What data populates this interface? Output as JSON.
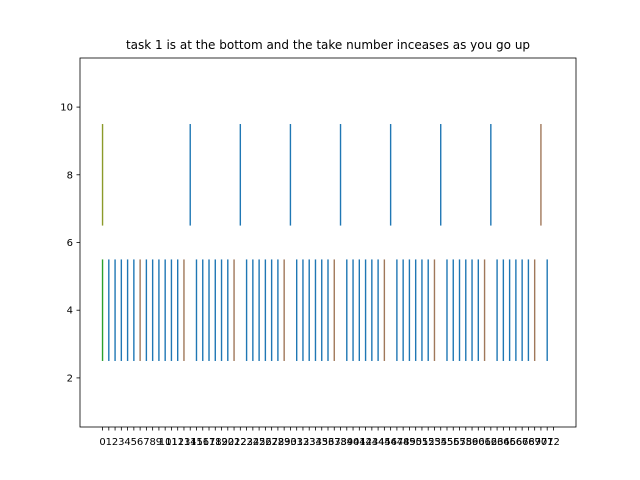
{
  "chart_data": {
    "type": "eventplot",
    "title": "task 1 is at the bottom and the take number inceases as you go up",
    "xlabel": "",
    "ylabel": "",
    "xlim": [
      -3.6,
      75.6
    ],
    "ylim": [
      0.55,
      11.45
    ],
    "yticks": [
      2,
      4,
      6,
      8,
      10
    ],
    "xticks": [
      0,
      1,
      2,
      3,
      4,
      5,
      6,
      7,
      8,
      9,
      10,
      11,
      12,
      13,
      14,
      15,
      16,
      17,
      18,
      19,
      20,
      21,
      22,
      23,
      24,
      25,
      26,
      27,
      28,
      29,
      30,
      31,
      32,
      33,
      34,
      35,
      36,
      37,
      38,
      39,
      40,
      41,
      42,
      43,
      44,
      45,
      46,
      47,
      48,
      49,
      50,
      51,
      52,
      53,
      54,
      55,
      56,
      57,
      58,
      59,
      60,
      61,
      62,
      63,
      64,
      65,
      66,
      67,
      68,
      69,
      70,
      71,
      72
    ],
    "colors": {
      "blue": "#1f77b4",
      "brown": "#a0785a",
      "green": "#2ca02c",
      "olive": "#8c9a2a"
    },
    "series": [
      {
        "row": "bottom",
        "y_range": [
          2.5,
          5.5
        ],
        "events": [
          {
            "x": 0,
            "color": "green"
          },
          {
            "x": 1,
            "color": "blue"
          },
          {
            "x": 2,
            "color": "blue"
          },
          {
            "x": 3,
            "color": "blue"
          },
          {
            "x": 4,
            "color": "blue"
          },
          {
            "x": 5,
            "color": "blue"
          },
          {
            "x": 6,
            "color": "brown"
          },
          {
            "x": 7,
            "color": "blue"
          },
          {
            "x": 8,
            "color": "blue"
          },
          {
            "x": 9,
            "color": "blue"
          },
          {
            "x": 10,
            "color": "blue"
          },
          {
            "x": 11,
            "color": "blue"
          },
          {
            "x": 12,
            "color": "blue"
          },
          {
            "x": 13,
            "color": "brown"
          },
          {
            "x": 15,
            "color": "blue"
          },
          {
            "x": 16,
            "color": "blue"
          },
          {
            "x": 17,
            "color": "blue"
          },
          {
            "x": 18,
            "color": "blue"
          },
          {
            "x": 19,
            "color": "blue"
          },
          {
            "x": 20,
            "color": "blue"
          },
          {
            "x": 21,
            "color": "brown"
          },
          {
            "x": 23,
            "color": "blue"
          },
          {
            "x": 24,
            "color": "blue"
          },
          {
            "x": 25,
            "color": "blue"
          },
          {
            "x": 26,
            "color": "blue"
          },
          {
            "x": 27,
            "color": "blue"
          },
          {
            "x": 28,
            "color": "blue"
          },
          {
            "x": 29,
            "color": "brown"
          },
          {
            "x": 31,
            "color": "blue"
          },
          {
            "x": 32,
            "color": "blue"
          },
          {
            "x": 33,
            "color": "blue"
          },
          {
            "x": 34,
            "color": "blue"
          },
          {
            "x": 35,
            "color": "blue"
          },
          {
            "x": 36,
            "color": "blue"
          },
          {
            "x": 37,
            "color": "brown"
          },
          {
            "x": 39,
            "color": "blue"
          },
          {
            "x": 40,
            "color": "blue"
          },
          {
            "x": 41,
            "color": "blue"
          },
          {
            "x": 42,
            "color": "blue"
          },
          {
            "x": 43,
            "color": "blue"
          },
          {
            "x": 44,
            "color": "blue"
          },
          {
            "x": 45,
            "color": "brown"
          },
          {
            "x": 47,
            "color": "blue"
          },
          {
            "x": 48,
            "color": "blue"
          },
          {
            "x": 49,
            "color": "blue"
          },
          {
            "x": 50,
            "color": "blue"
          },
          {
            "x": 51,
            "color": "blue"
          },
          {
            "x": 52,
            "color": "blue"
          },
          {
            "x": 53,
            "color": "brown"
          },
          {
            "x": 55,
            "color": "blue"
          },
          {
            "x": 56,
            "color": "blue"
          },
          {
            "x": 57,
            "color": "blue"
          },
          {
            "x": 58,
            "color": "blue"
          },
          {
            "x": 59,
            "color": "blue"
          },
          {
            "x": 60,
            "color": "blue"
          },
          {
            "x": 61,
            "color": "brown"
          },
          {
            "x": 63,
            "color": "blue"
          },
          {
            "x": 64,
            "color": "blue"
          },
          {
            "x": 65,
            "color": "blue"
          },
          {
            "x": 66,
            "color": "blue"
          },
          {
            "x": 67,
            "color": "blue"
          },
          {
            "x": 68,
            "color": "blue"
          },
          {
            "x": 69,
            "color": "brown"
          },
          {
            "x": 71,
            "color": "blue"
          }
        ]
      },
      {
        "row": "top",
        "y_range": [
          6.5,
          9.5
        ],
        "events": [
          {
            "x": 0,
            "color": "olive"
          },
          {
            "x": 14,
            "color": "blue"
          },
          {
            "x": 22,
            "color": "blue"
          },
          {
            "x": 30,
            "color": "blue"
          },
          {
            "x": 38,
            "color": "blue"
          },
          {
            "x": 46,
            "color": "blue"
          },
          {
            "x": 54,
            "color": "blue"
          },
          {
            "x": 62,
            "color": "blue"
          },
          {
            "x": 70,
            "color": "brown"
          }
        ]
      }
    ]
  }
}
